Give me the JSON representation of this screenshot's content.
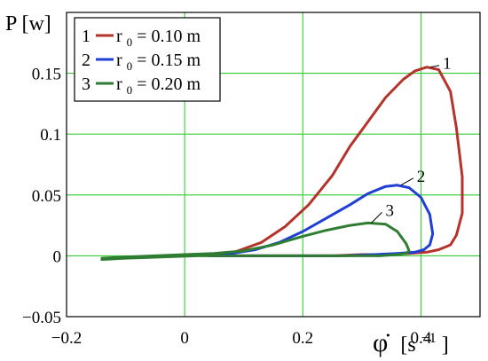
{
  "chart_data": {
    "type": "line",
    "title": "",
    "ylabel": "P [w]",
    "xlabel_symbol": "φ̇",
    "xlabel_unit": "[s",
    "xlabel_unit_sup": "−1",
    "xlabel_unit_close": "]",
    "xlim": [
      -0.2,
      0.5
    ],
    "ylim": [
      -0.05,
      0.2
    ],
    "x_ticks": [
      {
        "value": -0.2,
        "label": "−0.2"
      },
      {
        "value": 0,
        "label": "0"
      },
      {
        "value": 0.2,
        "label": "0.2"
      },
      {
        "value": 0.4,
        "label": "0.4"
      }
    ],
    "y_ticks": [
      {
        "value": -0.05,
        "label": "−0.05"
      },
      {
        "value": 0,
        "label": "0"
      },
      {
        "value": 0.05,
        "label": "0.05"
      },
      {
        "value": 0.1,
        "label": "0.1"
      },
      {
        "value": 0.15,
        "label": "0.15"
      }
    ],
    "grid": true,
    "grid_color": "#33cc33",
    "legend_position": "top-left",
    "series": [
      {
        "name": "r0 = 0.10 m",
        "legend_num": "1",
        "legend_r": "r",
        "legend_sub": "0",
        "legend_rest": " = 0.10 m",
        "curve_label": "1",
        "color": "#b5332a",
        "x": [
          0.06,
          0.09,
          0.13,
          0.17,
          0.21,
          0.25,
          0.28,
          0.31,
          0.34,
          0.37,
          0.39,
          0.41,
          0.43,
          0.45,
          0.46,
          0.47,
          0.47,
          0.46,
          0.45,
          0.43,
          0.41,
          0.38,
          0.34,
          0.3,
          0.25,
          0.2,
          0.15,
          0.1,
          0.06
        ],
        "y": [
          0.0,
          0.004,
          0.011,
          0.024,
          0.042,
          0.066,
          0.09,
          0.11,
          0.13,
          0.145,
          0.152,
          0.155,
          0.153,
          0.135,
          0.105,
          0.065,
          0.035,
          0.017,
          0.009,
          0.005,
          0.003,
          0.002,
          0.001,
          0.001,
          0.0,
          0.0,
          0.0,
          0.0,
          0.0
        ]
      },
      {
        "name": "r0 = 0.15 m",
        "legend_num": "2",
        "legend_r": "r",
        "legend_sub": "0",
        "legend_rest": " = 0.15 m",
        "curve_label": "2",
        "color": "#1f3fd6",
        "x": [
          0.04,
          0.08,
          0.12,
          0.16,
          0.2,
          0.24,
          0.28,
          0.31,
          0.34,
          0.36,
          0.38,
          0.4,
          0.415,
          0.42,
          0.415,
          0.405,
          0.39,
          0.36,
          0.32,
          0.27,
          0.2,
          0.12,
          0.04
        ],
        "y": [
          0.0,
          0.002,
          0.005,
          0.011,
          0.02,
          0.031,
          0.042,
          0.051,
          0.057,
          0.058,
          0.056,
          0.048,
          0.034,
          0.018,
          0.009,
          0.005,
          0.003,
          0.002,
          0.001,
          0.0,
          0.0,
          0.0,
          0.0
        ]
      },
      {
        "name": "r0 = 0.20 m",
        "legend_num": "3",
        "legend_r": "r",
        "legend_sub": "0",
        "legend_rest": " = 0.20 m",
        "curve_label": "3",
        "color": "#2e7d32",
        "x": [
          -0.14,
          -0.1,
          -0.05,
          0.0,
          0.05,
          0.1,
          0.15,
          0.2,
          0.24,
          0.28,
          0.31,
          0.34,
          0.36,
          0.375,
          0.38,
          0.375,
          0.36,
          0.33,
          0.28,
          0.22,
          0.15,
          0.08,
          0.02,
          -0.04,
          -0.1,
          -0.14
        ],
        "y": [
          -0.002,
          -0.001,
          0.0,
          0.001,
          0.002,
          0.004,
          0.009,
          0.016,
          0.021,
          0.025,
          0.027,
          0.026,
          0.02,
          0.01,
          0.004,
          0.002,
          0.001,
          0.0,
          0.0,
          0.0,
          0.0,
          0.0,
          0.0,
          -0.001,
          -0.002,
          -0.003
        ]
      }
    ]
  }
}
